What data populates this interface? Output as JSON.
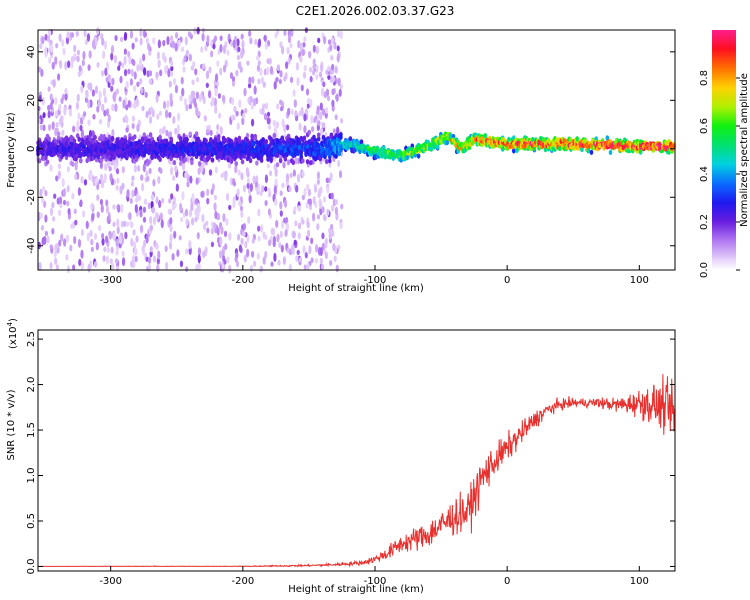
{
  "figure_title": "C2E1.2026.002.03.37.G23",
  "chart_data": [
    {
      "type": "heatmap",
      "title": "C2E1.2026.002.03.37.G23",
      "xlabel": "Height of straight line (km)",
      "ylabel": "Frequency (Hz)",
      "xlim": [
        -355,
        127
      ],
      "ylim": [
        -50,
        49
      ],
      "x_ticks": [
        -300,
        -200,
        -100,
        0,
        100
      ],
      "y_ticks": [
        -40,
        -20,
        0,
        20,
        40
      ],
      "colorbar": {
        "label": "Normalized spectral amplitude",
        "range": [
          0,
          1
        ],
        "ticks": [
          0.0,
          0.2,
          0.4,
          0.6,
          0.8
        ]
      },
      "description_points": {
        "noise_region_x": [
          -355,
          -125
        ],
        "signal_track": {
          "x": [
            -355,
            -200,
            -140,
            -120,
            -100,
            -80,
            -60,
            -45,
            -35,
            -25,
            0,
            50,
            100,
            127
          ],
          "frequency_hz": [
            0,
            0,
            0,
            2,
            -1,
            -3,
            1,
            5,
            0,
            4,
            2,
            2,
            1,
            1
          ],
          "peak_amplitude": [
            0.25,
            0.3,
            0.35,
            0.5,
            0.6,
            0.65,
            0.7,
            0.75,
            0.8,
            0.85,
            0.9,
            0.95,
            0.97,
            0.95
          ]
        }
      }
    },
    {
      "type": "line",
      "xlabel": "Height of straight line (km)",
      "ylabel": "SNR (10 * v/v)",
      "y_scale_label": "(x10",
      "y_scale_exp": "4",
      "y_scale_close": ")",
      "xlim": [
        -355,
        127
      ],
      "ylim": [
        -0.05,
        2.6
      ],
      "x_ticks": [
        -300,
        -200,
        -100,
        0,
        100
      ],
      "y_ticks": [
        0.0,
        0.5,
        1.0,
        1.5,
        2.0,
        2.5
      ],
      "color": "#e8312e",
      "series": [
        {
          "name": "SNR",
          "x": [
            -355,
            -300,
            -200,
            -150,
            -130,
            -110,
            -100,
            -90,
            -80,
            -70,
            -60,
            -50,
            -40,
            -30,
            -25,
            -20,
            -15,
            -10,
            0,
            10,
            20,
            30,
            40,
            50,
            60,
            70,
            80,
            90,
            100,
            110,
            120,
            127
          ],
          "y": [
            0.0,
            0.0,
            0.0,
            0.01,
            0.02,
            0.04,
            0.08,
            0.15,
            0.25,
            0.3,
            0.35,
            0.45,
            0.55,
            0.6,
            0.75,
            0.95,
            1.05,
            1.15,
            1.3,
            1.45,
            1.6,
            1.72,
            1.78,
            1.8,
            1.8,
            1.8,
            1.78,
            1.78,
            1.8,
            1.78,
            1.75,
            1.7
          ],
          "noise_amplitude": [
            0.0,
            0.01,
            0.01,
            0.02,
            0.03,
            0.05,
            0.08,
            0.15,
            0.2,
            0.25,
            0.3,
            0.35,
            0.4,
            0.4,
            0.45,
            0.45,
            0.4,
            0.35,
            0.3,
            0.25,
            0.2,
            0.15,
            0.12,
            0.1,
            0.1,
            0.12,
            0.14,
            0.2,
            0.3,
            0.45,
            0.55,
            0.5
          ]
        }
      ]
    }
  ]
}
